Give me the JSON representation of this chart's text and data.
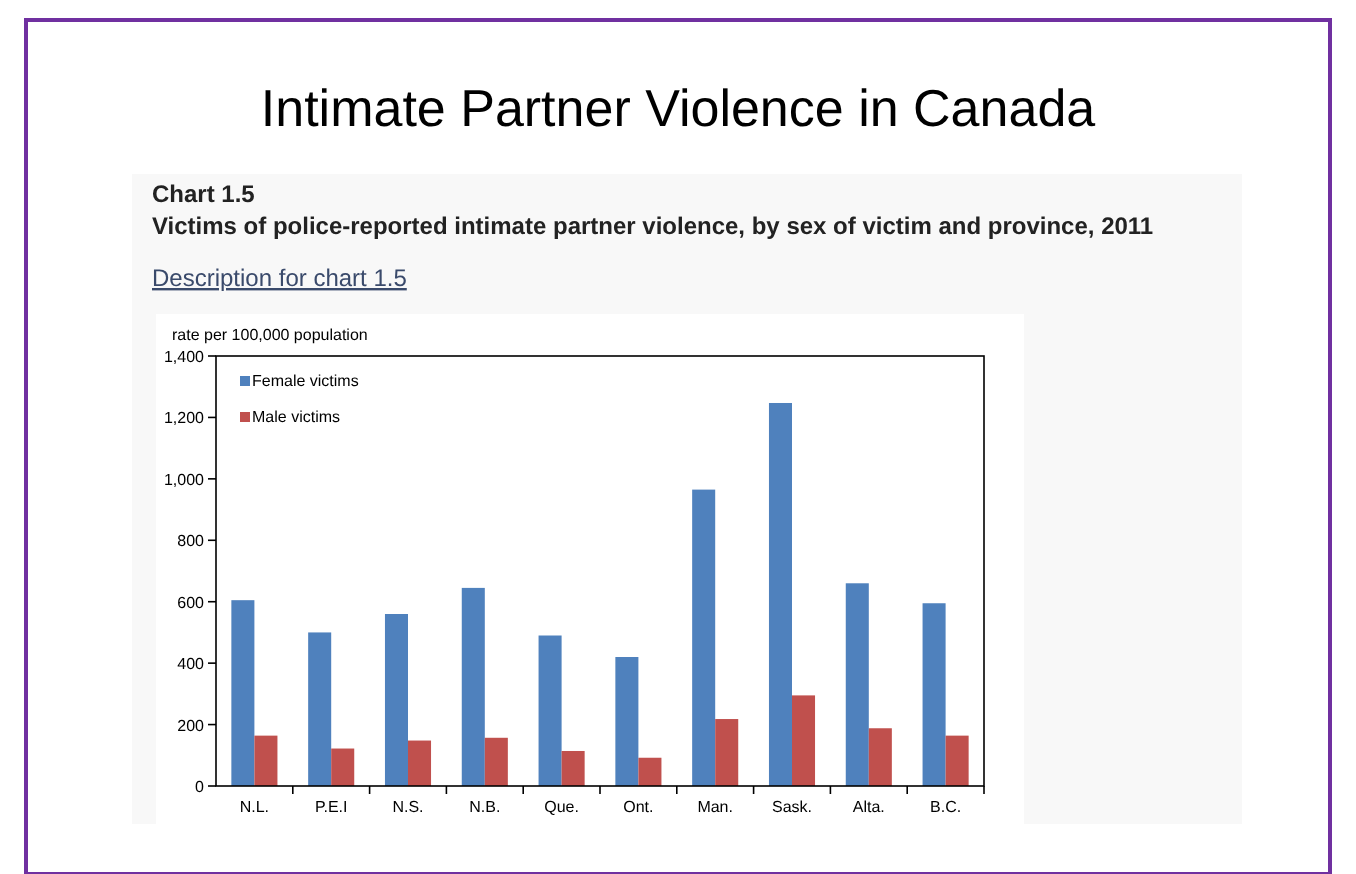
{
  "chart_data": {
    "type": "bar",
    "title": "Intimate Partner Violence in Canada",
    "subtitle": "Chart 1.5",
    "annotations": [
      "Victims of police-reported intimate partner violence, by sex of victim and province, 2011",
      "Description for chart 1.5"
    ],
    "ylabel": "rate per 100,000 population",
    "categories": [
      "N.L.",
      "P.E.I",
      "N.S.",
      "N.B.",
      "Que.",
      "Ont.",
      "Man.",
      "Sask.",
      "Alta.",
      "B.C."
    ],
    "series": [
      {
        "name": "Female victims",
        "color": "#4f81bd",
        "values": [
          605,
          500,
          560,
          645,
          490,
          420,
          965,
          1247,
          660,
          595
        ]
      },
      {
        "name": "Male victims",
        "color": "#c0504d",
        "values": [
          164,
          122,
          148,
          157,
          114,
          92,
          218,
          295,
          188,
          164
        ]
      }
    ],
    "ylim": [
      0,
      1400
    ],
    "yticks": [
      {
        "value": 0,
        "label": "0"
      },
      {
        "value": 200,
        "label": "200"
      },
      {
        "value": 400,
        "label": "400"
      },
      {
        "value": 600,
        "label": "600"
      },
      {
        "value": 800,
        "label": "800"
      },
      {
        "value": 1000,
        "label": "1,000"
      },
      {
        "value": 1200,
        "label": "1,200"
      },
      {
        "value": 1400,
        "label": "1,400"
      }
    ],
    "grid": false,
    "legend": "top left"
  }
}
